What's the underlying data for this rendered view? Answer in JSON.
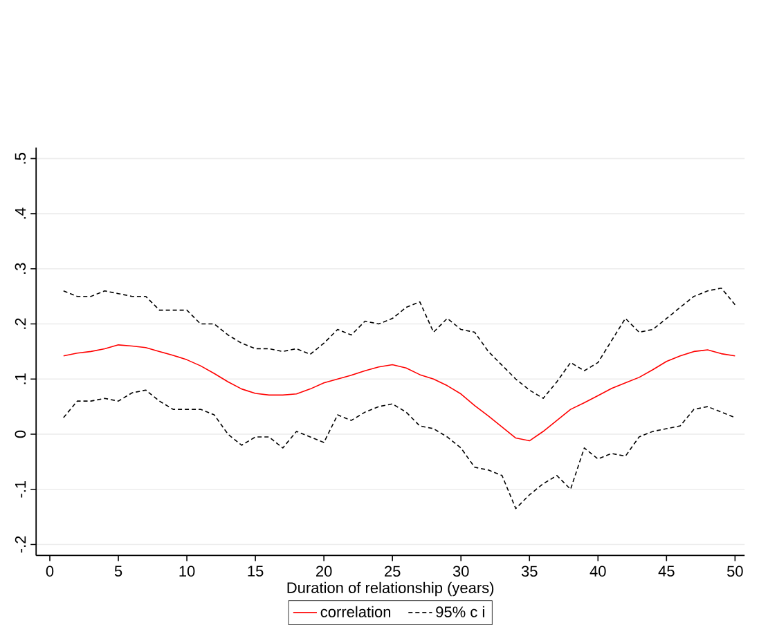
{
  "chart_data": {
    "type": "line",
    "xlabel": "Duration of relationship (years)",
    "x": [
      1,
      2,
      3,
      4,
      5,
      6,
      7,
      8,
      9,
      10,
      11,
      12,
      13,
      14,
      15,
      16,
      17,
      18,
      19,
      20,
      21,
      22,
      23,
      24,
      25,
      26,
      27,
      28,
      29,
      30,
      31,
      32,
      33,
      34,
      35,
      36,
      37,
      38,
      39,
      40,
      41,
      42,
      43,
      44,
      45,
      46,
      47,
      48,
      49,
      50
    ],
    "series": [
      {
        "name": "correlation",
        "color": "#ff0000",
        "line_style": "solid",
        "values": [
          0.142,
          0.147,
          0.15,
          0.155,
          0.162,
          0.16,
          0.157,
          0.15,
          0.143,
          0.135,
          0.124,
          0.11,
          0.095,
          0.082,
          0.074,
          0.071,
          0.071,
          0.073,
          0.082,
          0.093,
          0.1,
          0.107,
          0.115,
          0.122,
          0.126,
          0.12,
          0.108,
          0.1,
          0.088,
          0.073,
          0.052,
          0.033,
          0.013,
          -0.007,
          -0.012,
          0.005,
          0.025,
          0.045,
          0.057,
          0.07,
          0.083,
          0.093,
          0.103,
          0.117,
          0.132,
          0.142,
          0.15,
          0.153,
          0.146,
          0.142
        ]
      },
      {
        "name": "95% c i",
        "color": "#000000",
        "line_style": "dashed",
        "values": [
          0.26,
          0.25,
          0.25,
          0.26,
          0.255,
          0.25,
          0.25,
          0.225,
          0.225,
          0.225,
          0.2,
          0.2,
          0.18,
          0.165,
          0.155,
          0.155,
          0.15,
          0.155,
          0.145,
          0.165,
          0.19,
          0.18,
          0.205,
          0.2,
          0.21,
          0.23,
          0.24,
          0.185,
          0.21,
          0.19,
          0.185,
          0.15,
          0.125,
          0.1,
          0.08,
          0.065,
          0.095,
          0.13,
          0.115,
          0.13,
          0.17,
          0.21,
          0.185,
          0.19,
          0.21,
          0.23,
          0.25,
          0.26,
          0.265,
          0.235
        ]
      },
      {
        "color": "#000000",
        "line_style": "dashed",
        "values": [
          0.03,
          0.06,
          0.06,
          0.065,
          0.06,
          0.075,
          0.08,
          0.06,
          0.045,
          0.045,
          0.045,
          0.035,
          0.0,
          -0.02,
          -0.005,
          -0.005,
          -0.025,
          0.005,
          -0.005,
          -0.015,
          0.035,
          0.025,
          0.04,
          0.05,
          0.055,
          0.04,
          0.015,
          0.01,
          -0.005,
          -0.025,
          -0.06,
          -0.065,
          -0.075,
          -0.135,
          -0.11,
          -0.09,
          -0.075,
          -0.1,
          -0.025,
          -0.045,
          -0.035,
          -0.04,
          -0.005,
          0.005,
          0.01,
          0.015,
          0.045,
          0.05,
          0.04,
          0.03
        ]
      }
    ],
    "xlim": [
      -1,
      50.7
    ],
    "ylim": [
      -0.22,
      0.52
    ],
    "xticks": [
      0,
      5,
      10,
      15,
      20,
      25,
      30,
      35,
      40,
      45,
      50
    ],
    "yticks": [
      {
        "value": -0.2,
        "label": "-.2"
      },
      {
        "value": -0.1,
        "label": "-.1"
      },
      {
        "value": 0,
        "label": "0"
      },
      {
        "value": 0.1,
        "label": ".1"
      },
      {
        "value": 0.2,
        "label": ".2"
      },
      {
        "value": 0.3,
        "label": ".3"
      },
      {
        "value": 0.4,
        "label": ".4"
      },
      {
        "value": 0.5,
        "label": ".5"
      }
    ],
    "grid": "y",
    "legend": "bottom",
    "marker": "none"
  }
}
